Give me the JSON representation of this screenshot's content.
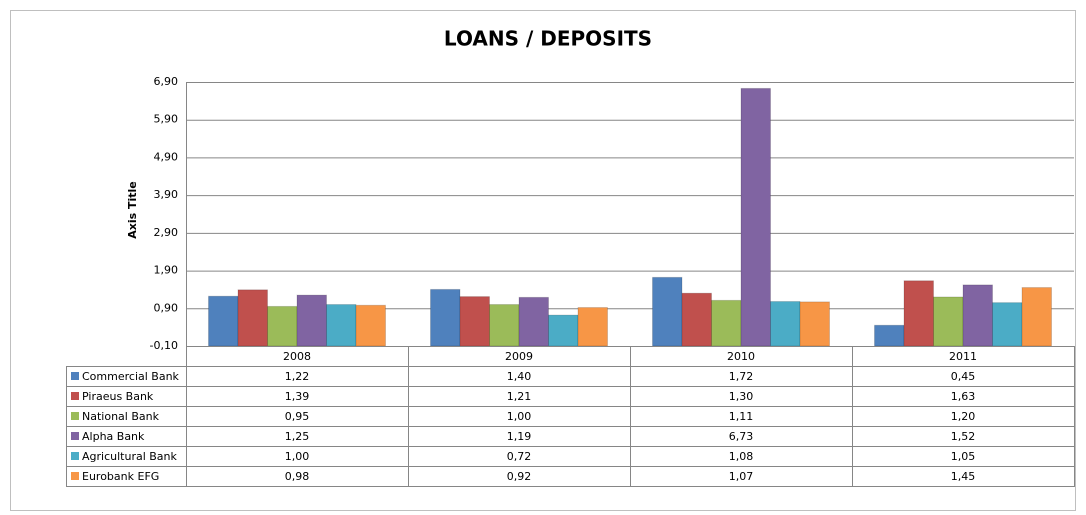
{
  "chart_data": {
    "type": "bar",
    "title": "LOANS / DEPOSITS",
    "y_label": "Axis Title",
    "categories": [
      "2008",
      "2009",
      "2010",
      "2011"
    ],
    "series": [
      {
        "name": "Commercial Bank",
        "color": "#4f81bd",
        "values": [
          1.22,
          1.4,
          1.72,
          0.45
        ],
        "value_labels": [
          "1,22",
          "1,40",
          "1,72",
          "0,45"
        ]
      },
      {
        "name": "Piraeus Bank",
        "color": "#c0504d",
        "values": [
          1.39,
          1.21,
          1.3,
          1.63
        ],
        "value_labels": [
          "1,39",
          "1,21",
          "1,30",
          "1,63"
        ]
      },
      {
        "name": "National Bank",
        "color": "#9bbb59",
        "values": [
          0.95,
          1.0,
          1.11,
          1.2
        ],
        "value_labels": [
          "0,95",
          "1,00",
          "1,11",
          "1,20"
        ]
      },
      {
        "name": "Alpha Bank",
        "color": "#8064a2",
        "values": [
          1.25,
          1.19,
          6.73,
          1.52
        ],
        "value_labels": [
          "1,25",
          "1,19",
          "6,73",
          "1,52"
        ]
      },
      {
        "name": "Agricultural Bank",
        "color": "#4bacc6",
        "values": [
          1.0,
          0.72,
          1.08,
          1.05
        ],
        "value_labels": [
          "1,00",
          "0,72",
          "1,08",
          "1,05"
        ]
      },
      {
        "name": "Eurobank EFG",
        "color": "#f79646",
        "values": [
          0.98,
          0.92,
          1.07,
          1.45
        ],
        "value_labels": [
          "0,98",
          "0,92",
          "1,07",
          "1,45"
        ]
      }
    ],
    "ylim": [
      -0.1,
      6.9
    ],
    "yticks": [
      {
        "value": -0.1,
        "label": "-0,10"
      },
      {
        "value": 0.9,
        "label": "0,90"
      },
      {
        "value": 1.9,
        "label": "1,90"
      },
      {
        "value": 2.9,
        "label": "2,90"
      },
      {
        "value": 3.9,
        "label": "3,90"
      },
      {
        "value": 4.9,
        "label": "4,90"
      },
      {
        "value": 5.9,
        "label": "5,90"
      },
      {
        "value": 6.9,
        "label": "6,90"
      }
    ],
    "grid": true
  }
}
